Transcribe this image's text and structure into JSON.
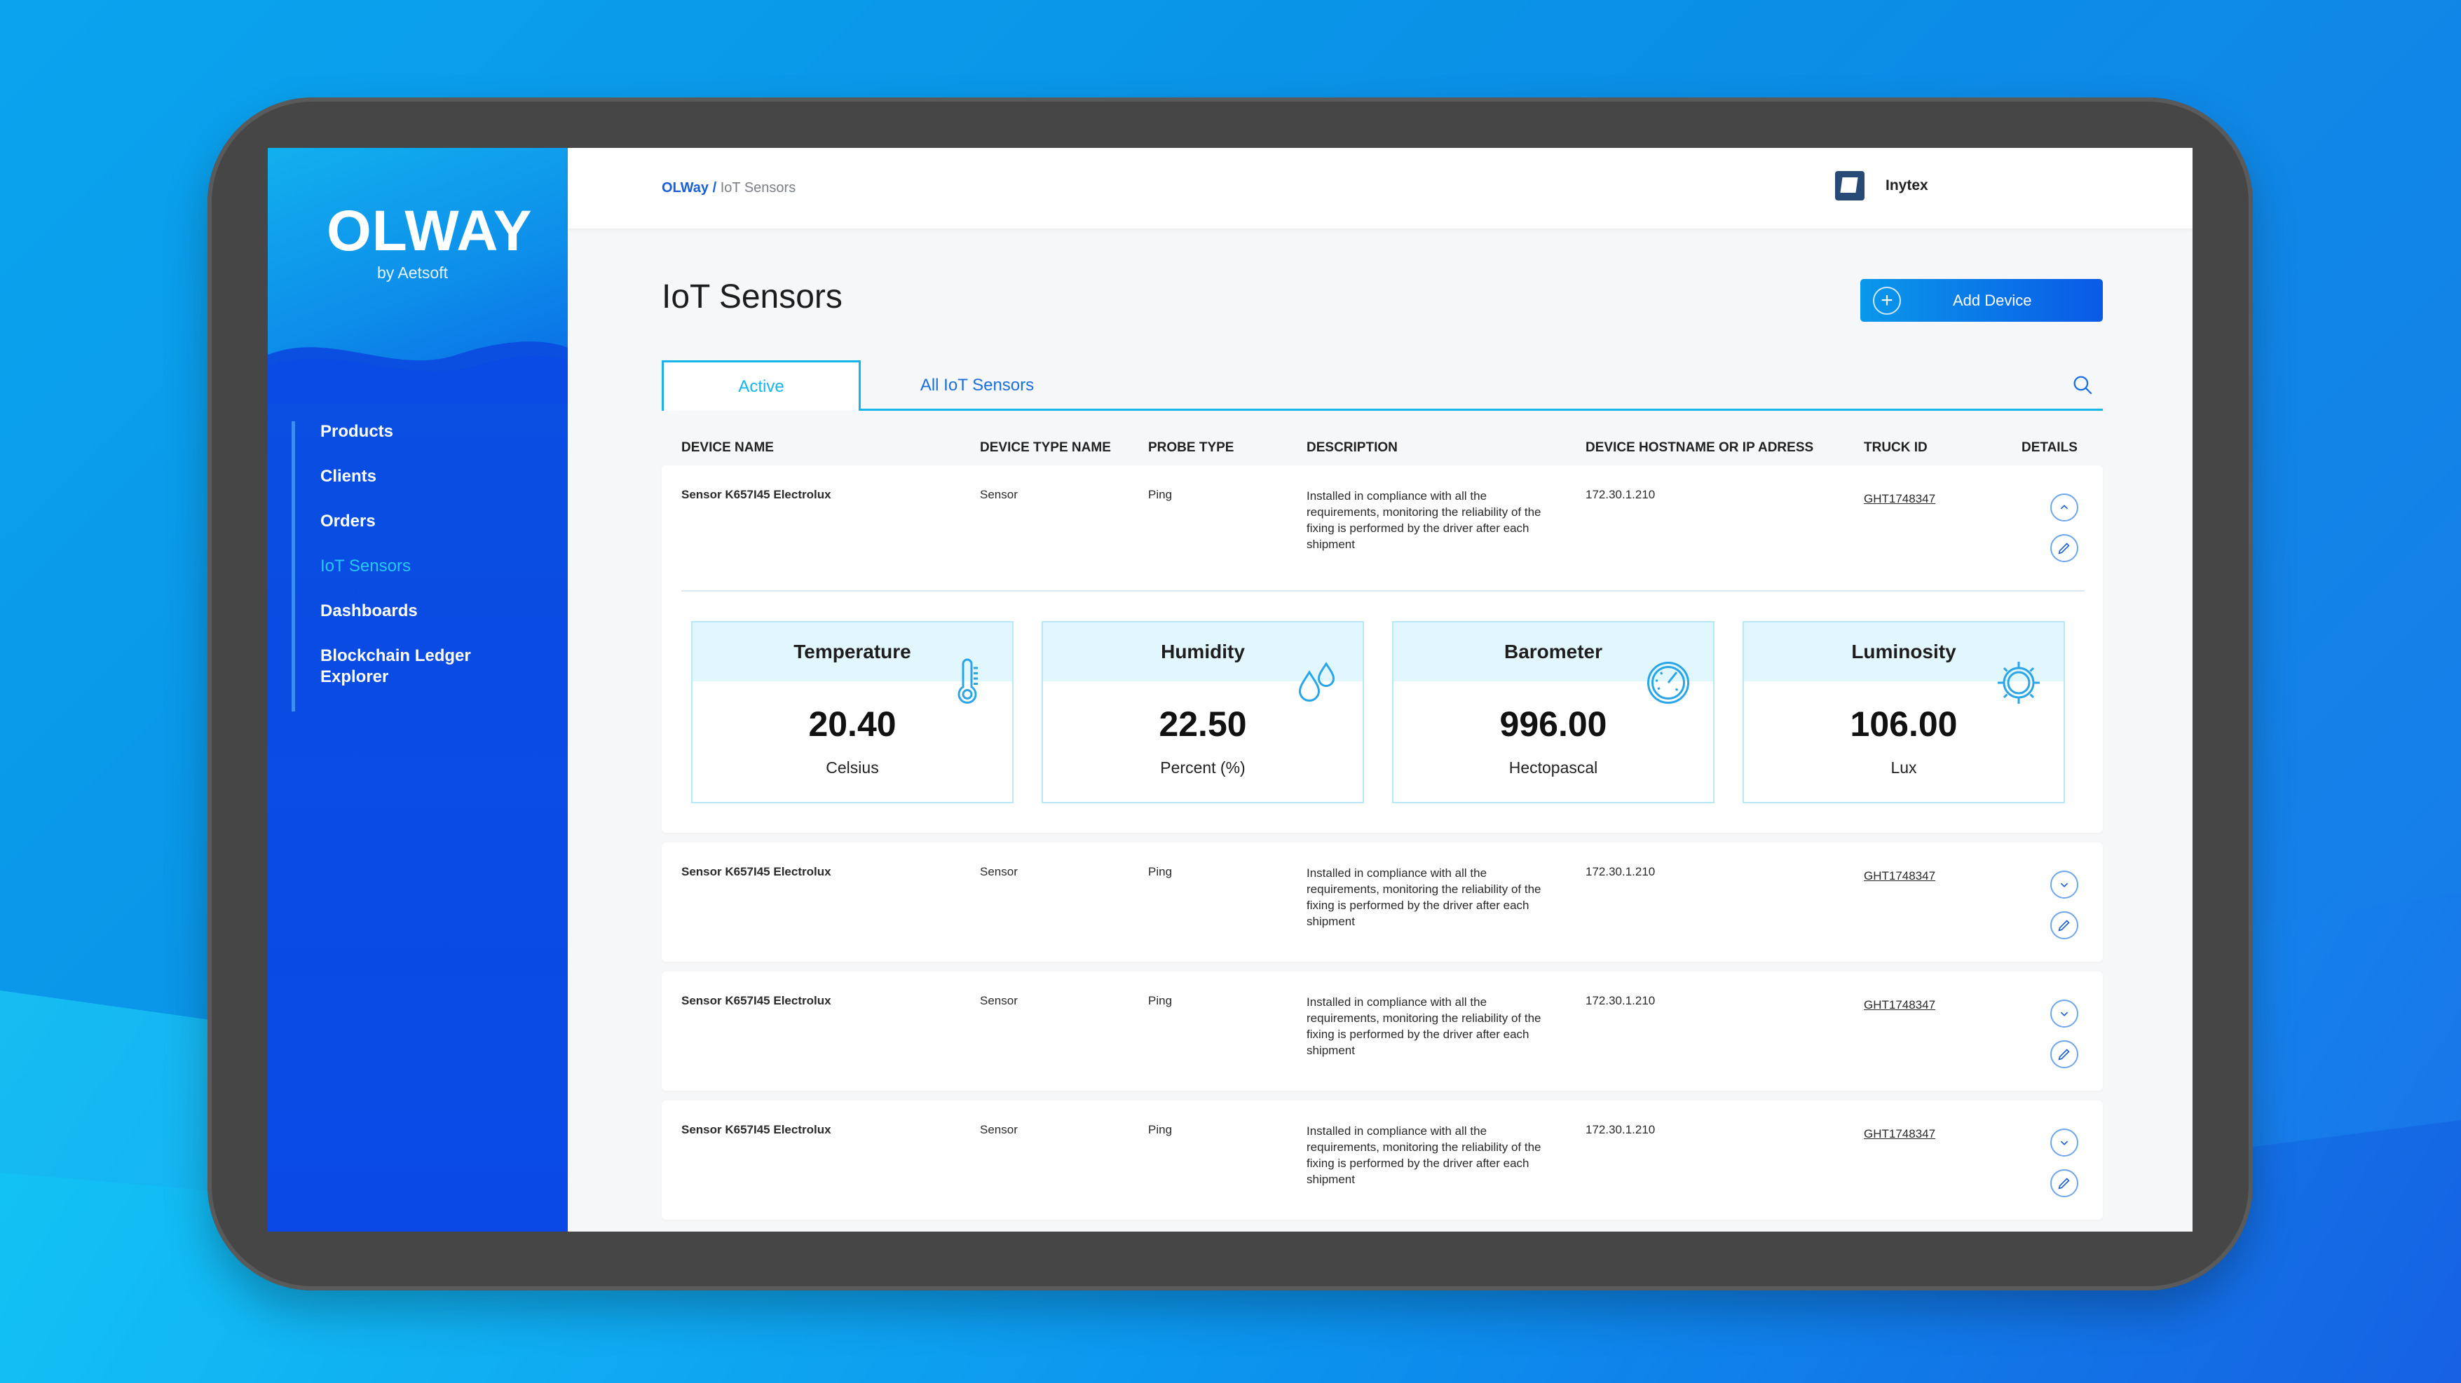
{
  "app": {
    "logo_text": "OLWAY",
    "logo_sub": "by Aetsoft"
  },
  "sidebar": {
    "items": [
      {
        "label": "Products"
      },
      {
        "label": "Clients"
      },
      {
        "label": "Orders"
      },
      {
        "label": "IoT Sensors"
      },
      {
        "label": "Dashboards"
      },
      {
        "label": "Blockchain Ledger Explorer"
      }
    ],
    "active_item": "IoT Sensors"
  },
  "header": {
    "breadcrumb_root": "OLWay /",
    "breadcrumb_current": "IoT Sensors",
    "company_name": "Inytex",
    "icons": [
      "bell-icon",
      "gear-icon",
      "logout-icon"
    ]
  },
  "main": {
    "title": "IoT Sensors",
    "add_button_label": "Add Device",
    "tabs": [
      {
        "label": "Active"
      },
      {
        "label": "All IoT Sensors"
      }
    ],
    "columns": [
      "DEVICE NAME",
      "DEVICE TYPE NAME",
      "PROBE TYPE",
      "DESCRIPTION",
      "DEVICE HOSTNAME OR IP ADRESS",
      "TRUCK ID",
      "DETAILS"
    ],
    "rows": [
      {
        "name": "Sensor K657I45 Electrolux",
        "type": "Sensor",
        "probe": "Ping",
        "description": "Installed in compliance with all the requirements, monitoring the reliability of the fixing is performed by the driver after each shipment",
        "host": "172.30.1.210",
        "truck": "GHT1748347",
        "expanded": true
      },
      {
        "name": "Sensor K657I45 Electrolux",
        "type": "Sensor",
        "probe": "Ping",
        "description": "Installed in compliance with all the requirements, monitoring the reliability of the fixing is performed by the driver after each shipment",
        "host": "172.30.1.210",
        "truck": "GHT1748347",
        "expanded": false
      },
      {
        "name": "Sensor K657I45 Electrolux",
        "type": "Sensor",
        "probe": "Ping",
        "description": "Installed in compliance with all the requirements, monitoring the reliability of the fixing is performed by the driver after each shipment",
        "host": "172.30.1.210",
        "truck": "GHT1748347",
        "expanded": false
      },
      {
        "name": "Sensor K657I45 Electrolux",
        "type": "Sensor",
        "probe": "Ping",
        "description": "Installed in compliance with all the requirements, monitoring the reliability of the fixing is performed by the driver after each shipment",
        "host": "172.30.1.210",
        "truck": "GHT1748347",
        "expanded": false
      }
    ],
    "metrics": [
      {
        "label": "Temperature",
        "value": "20.40",
        "unit": "Celsius",
        "icon": "thermometer-icon"
      },
      {
        "label": "Humidity",
        "value": "22.50",
        "unit": "Percent (%)",
        "icon": "droplets-icon"
      },
      {
        "label": "Barometer",
        "value": "996.00",
        "unit": "Hectopascal",
        "icon": "gauge-icon"
      },
      {
        "label": "Luminosity",
        "value": "106.00",
        "unit": "Lux",
        "icon": "sun-icon"
      }
    ]
  },
  "colors": {
    "accent": "#1b5fd8",
    "cyan": "#18b4ec",
    "sidebar": "#0a4fe0"
  }
}
